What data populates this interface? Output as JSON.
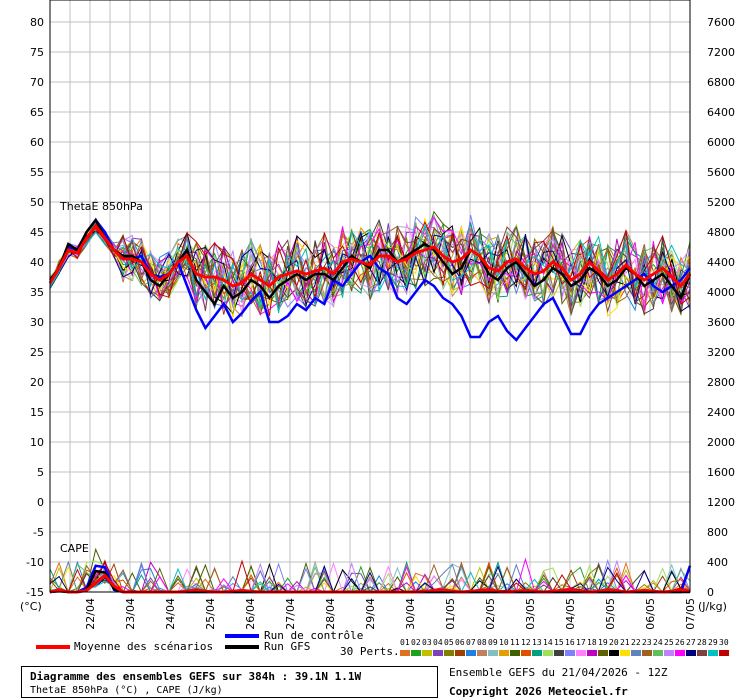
{
  "chart_data": {
    "type": "line",
    "title": "Diagramme des ensembles GEFS sur 384h : 39.1N 1.1W",
    "subtitle": "ThetaE 850hPa (°C) , CAPE (J/kg)",
    "left_axis": {
      "unit": "(°C)",
      "ticks": [
        80,
        75,
        70,
        65,
        60,
        55,
        50,
        45,
        40,
        35,
        30,
        25,
        20,
        15,
        10,
        5,
        0,
        -5,
        -10,
        -15
      ]
    },
    "right_axis": {
      "unit": "(J/kg)",
      "ticks": [
        7600,
        7200,
        6800,
        6400,
        6000,
        5600,
        5200,
        4800,
        4400,
        4000,
        3600,
        3200,
        2800,
        2400,
        2000,
        1600,
        1200,
        800,
        400,
        0
      ]
    },
    "x_labels": [
      "22/04",
      "23/04",
      "24/04",
      "25/04",
      "26/04",
      "27/04",
      "28/04",
      "29/04",
      "30/04",
      "01/05",
      "02/05",
      "03/05",
      "04/05",
      "05/05",
      "06/05",
      "07/05"
    ],
    "panel_labels": [
      "ThetaE 850hPa",
      "CAPE"
    ],
    "grid": true,
    "series": [
      {
        "name": "Moyenne des scénarios",
        "color": "#ff0000",
        "thetae": [
          36.5,
          39,
          42,
          41.5,
          44,
          46,
          44,
          42,
          40.5,
          40.5,
          40,
          38,
          37,
          38,
          40,
          41,
          38,
          37.5,
          37.5,
          37,
          36,
          36.5,
          38,
          37,
          36,
          37.5,
          38,
          38.5,
          38,
          38.5,
          39,
          38,
          40,
          40.5,
          40,
          39.5,
          41,
          41,
          40,
          40.5,
          41.5,
          42,
          42.5,
          41,
          40,
          40.5,
          42,
          41,
          39,
          38.5,
          40,
          40.5,
          39,
          38,
          38.5,
          40,
          39,
          37,
          38,
          40,
          38.5,
          37,
          38,
          39.5,
          38,
          37,
          38,
          39,
          37.5,
          36,
          38
        ],
        "cape": [
          0,
          30,
          0,
          0,
          20,
          120,
          220,
          80,
          0,
          0,
          0,
          0,
          0,
          0,
          0,
          10,
          30,
          10,
          0,
          0,
          10,
          20,
          10,
          0,
          0,
          0,
          0,
          0,
          0,
          0,
          0,
          0,
          0,
          0,
          0,
          0,
          0,
          0,
          0,
          0,
          0,
          10,
          20,
          30,
          10,
          0,
          10,
          20,
          30,
          10,
          0,
          10,
          20,
          10,
          0,
          10,
          20,
          30,
          10,
          0,
          10,
          30,
          20,
          0,
          10,
          20,
          10,
          0,
          10,
          30,
          10
        ]
      },
      {
        "name": "Run de contrôle",
        "color": "#0000ff",
        "thetae": [
          36.5,
          39,
          42.5,
          42,
          45,
          47,
          45,
          42,
          41,
          40.5,
          41,
          38,
          37.5,
          38,
          40,
          36,
          32,
          29,
          31,
          33,
          30,
          31.5,
          33.5,
          35,
          30,
          30,
          31,
          33,
          32,
          34,
          33,
          37,
          36,
          38,
          40,
          41,
          39,
          38,
          34,
          33,
          35,
          37,
          36,
          34,
          33,
          31,
          27.5,
          27.5,
          30,
          31,
          28.5,
          27,
          29,
          31,
          33,
          34,
          31,
          28,
          28,
          31,
          33,
          34,
          35,
          36,
          37,
          38,
          36,
          35,
          36,
          37,
          39
        ],
        "cape": [
          0,
          20,
          0,
          0,
          60,
          350,
          330,
          30,
          0,
          0,
          0,
          0,
          0,
          0,
          0,
          0,
          0,
          0,
          0,
          0,
          0,
          0,
          0,
          0,
          0,
          0,
          0,
          0,
          0,
          0,
          0,
          0,
          0,
          0,
          0,
          0,
          0,
          0,
          0,
          0,
          0,
          0,
          0,
          0,
          0,
          0,
          0,
          0,
          0,
          0,
          0,
          0,
          0,
          0,
          0,
          0,
          0,
          0,
          0,
          0,
          0,
          0,
          0,
          0,
          0,
          0,
          0,
          0,
          0,
          0,
          350
        ]
      },
      {
        "name": "Run GFS",
        "color": "#000000",
        "thetae": [
          37,
          39,
          43,
          42,
          45,
          47,
          44,
          42,
          41,
          41,
          40,
          37,
          36,
          38,
          40,
          42,
          37,
          35,
          33,
          36,
          34,
          35,
          37,
          36,
          34,
          36,
          37,
          38,
          37,
          38,
          38,
          37,
          39,
          41,
          40,
          39,
          42,
          42,
          40,
          41,
          42,
          43,
          42,
          40,
          38,
          39,
          42,
          41,
          38,
          37,
          39,
          40,
          38,
          36,
          37,
          39,
          38,
          36,
          37,
          39,
          38,
          36,
          37,
          39,
          38,
          36,
          37,
          38,
          36,
          34,
          38
        ],
        "cape": [
          0,
          10,
          0,
          0,
          30,
          280,
          260,
          40,
          0,
          0,
          0,
          0,
          0,
          0,
          0,
          0,
          0,
          0,
          0,
          0,
          0,
          0,
          0,
          0,
          0,
          0,
          0,
          0,
          0,
          0,
          0,
          0,
          0,
          0,
          0,
          0,
          0,
          0,
          0,
          0,
          0,
          0,
          0,
          0,
          0,
          0,
          0,
          0,
          0,
          0,
          0,
          0,
          0,
          0,
          0,
          0,
          0,
          0,
          0,
          0,
          0,
          0,
          0,
          0,
          0,
          0,
          0,
          0,
          0,
          0,
          0
        ]
      }
    ],
    "x_range_hours": [
      0,
      384
    ],
    "perturbations": {
      "count_label": "30 Perts.",
      "ids": [
        "01",
        "02",
        "03",
        "04",
        "05",
        "06",
        "07",
        "08",
        "09",
        "10",
        "11",
        "12",
        "13",
        "14",
        "15",
        "16",
        "17",
        "18",
        "19",
        "20",
        "21",
        "22",
        "23",
        "24",
        "25",
        "26",
        "27",
        "28",
        "29",
        "30"
      ]
    }
  },
  "colors": {
    "perturbations": [
      "#e07020",
      "#20a020",
      "#c0c000",
      "#8040c0",
      "#808000",
      "#a04000",
      "#2080e0",
      "#c08060",
      "#80c0c0",
      "#e0a000",
      "#406000",
      "#e05000",
      "#00a080",
      "#a0e060",
      "#404040",
      "#8080ff",
      "#ff80ff",
      "#c000c0",
      "#606000",
      "#000000",
      "#ffe000",
      "#6080c0",
      "#a06020",
      "#60c060",
      "#c080ff",
      "#ff00ff",
      "#000080",
      "#804040",
      "#00c0c0",
      "#c00000"
    ]
  },
  "legend": {
    "mean_label": "Moyenne des scénarios",
    "control_label": "Run de contrôle",
    "gfs_label": "Run GFS",
    "perts_label": "30 Perts."
  },
  "footer": {
    "title": "Diagramme des ensembles GEFS sur 384h : 39.1N 1.1W",
    "subtitle": "ThetaE 850hPa (°C) , CAPE (J/kg)",
    "run_info": "Ensemble GEFS du 21/04/2026 - 12Z",
    "copyright": "Copyright 2026 Meteociel.fr"
  }
}
